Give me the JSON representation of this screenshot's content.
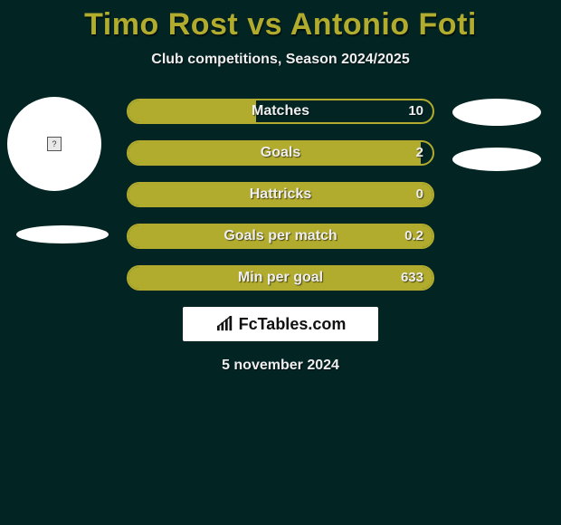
{
  "colors": {
    "background": "#022524",
    "accent": "#b1ab2e",
    "text_light": "#eeeeee",
    "white": "#ffffff"
  },
  "title": "Timo Rost vs Antonio Foti",
  "subtitle": "Club competitions, Season 2024/2025",
  "date": "5 november 2024",
  "brand": "FcTables.com",
  "stats": [
    {
      "label": "Matches",
      "value": "10",
      "fill_pct": 42
    },
    {
      "label": "Goals",
      "value": "2",
      "fill_pct": 96
    },
    {
      "label": "Hattricks",
      "value": "0",
      "fill_pct": 100
    },
    {
      "label": "Goals per match",
      "value": "0.2",
      "fill_pct": 100
    },
    {
      "label": "Min per goal",
      "value": "633",
      "fill_pct": 100
    }
  ]
}
